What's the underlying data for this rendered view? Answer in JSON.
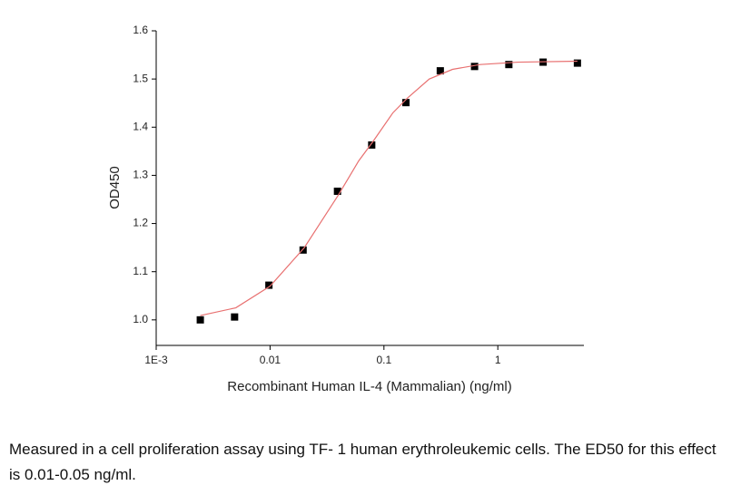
{
  "chart_data": {
    "type": "scatter",
    "xlabel": "Recombinant Human IL-4  (Mammalian) (ng/ml)",
    "ylabel": "OD450",
    "xscale": "log",
    "xlim": [
      0.001,
      5.7
    ],
    "ylim": [
      0.947,
      1.6
    ],
    "xticks": [
      {
        "value": 0.001,
        "label": "1E-3"
      },
      0.01,
      0.1,
      1
    ],
    "yticks": [
      {
        "value": 1,
        "label": "1.0"
      },
      1.1,
      1.2,
      1.3,
      1.4,
      1.5,
      1.6
    ],
    "series": [
      {
        "kind": "points",
        "color": "#000000",
        "x": [
          0.00244,
          0.00488,
          0.00977,
          0.0195,
          0.0391,
          0.0781,
          0.156,
          0.3125,
          0.625,
          1.25,
          2.5,
          5
        ],
        "values": [
          1.0,
          1.006,
          1.072,
          1.145,
          1.267,
          1.363,
          1.451,
          1.517,
          1.526,
          1.53,
          1.535,
          1.533
        ]
      },
      {
        "kind": "line",
        "color": "#e87070",
        "x": [
          0.00244,
          0.005,
          0.01,
          0.02,
          0.04,
          0.06,
          0.08,
          0.12,
          0.16,
          0.25,
          0.4,
          0.7,
          1.5,
          5
        ],
        "values": [
          1.009,
          1.025,
          1.07,
          1.15,
          1.26,
          1.33,
          1.37,
          1.43,
          1.46,
          1.5,
          1.52,
          1.53,
          1.535,
          1.537
        ]
      }
    ]
  },
  "caption": "Measured in a cell proliferation assay using TF- 1 human erythroleukemic cells. The ED50 for this effect is 0.01-0.05 ng/ml."
}
